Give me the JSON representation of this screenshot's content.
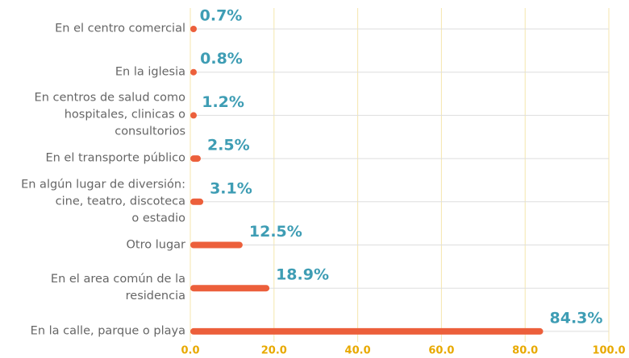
{
  "chart_data": {
    "type": "barh",
    "categories": [
      "En el centro comercial",
      "En la iglesia",
      "En centros de salud como\nhospitales, clinicas o\nconsultorios",
      "En el transporte público",
      "En algún lugar de diversión:\ncine, teatro, discoteca\no estadio",
      "Otro lugar",
      "En el area común de la\nresidencia",
      "En la calle, parque o playa"
    ],
    "values": [
      0.7,
      0.8,
      1.2,
      2.5,
      3.1,
      12.5,
      18.9,
      84.3
    ],
    "value_labels": [
      "0.7%",
      "0.8%",
      "1.2%",
      "2.5%",
      "3.1%",
      "12.5%",
      "18.9%",
      "84.3%"
    ],
    "color": "#ec5f3b",
    "xlim": [
      0,
      100
    ],
    "xticks": [
      {
        "value": 0,
        "label": "0.0"
      },
      {
        "value": 20,
        "label": "20.0"
      },
      {
        "value": 40,
        "label": "40.0"
      },
      {
        "value": 60,
        "label": "60.0"
      },
      {
        "value": 80,
        "label": "80.0"
      },
      {
        "value": 100,
        "label": "100.0"
      }
    ],
    "grid": true
  }
}
